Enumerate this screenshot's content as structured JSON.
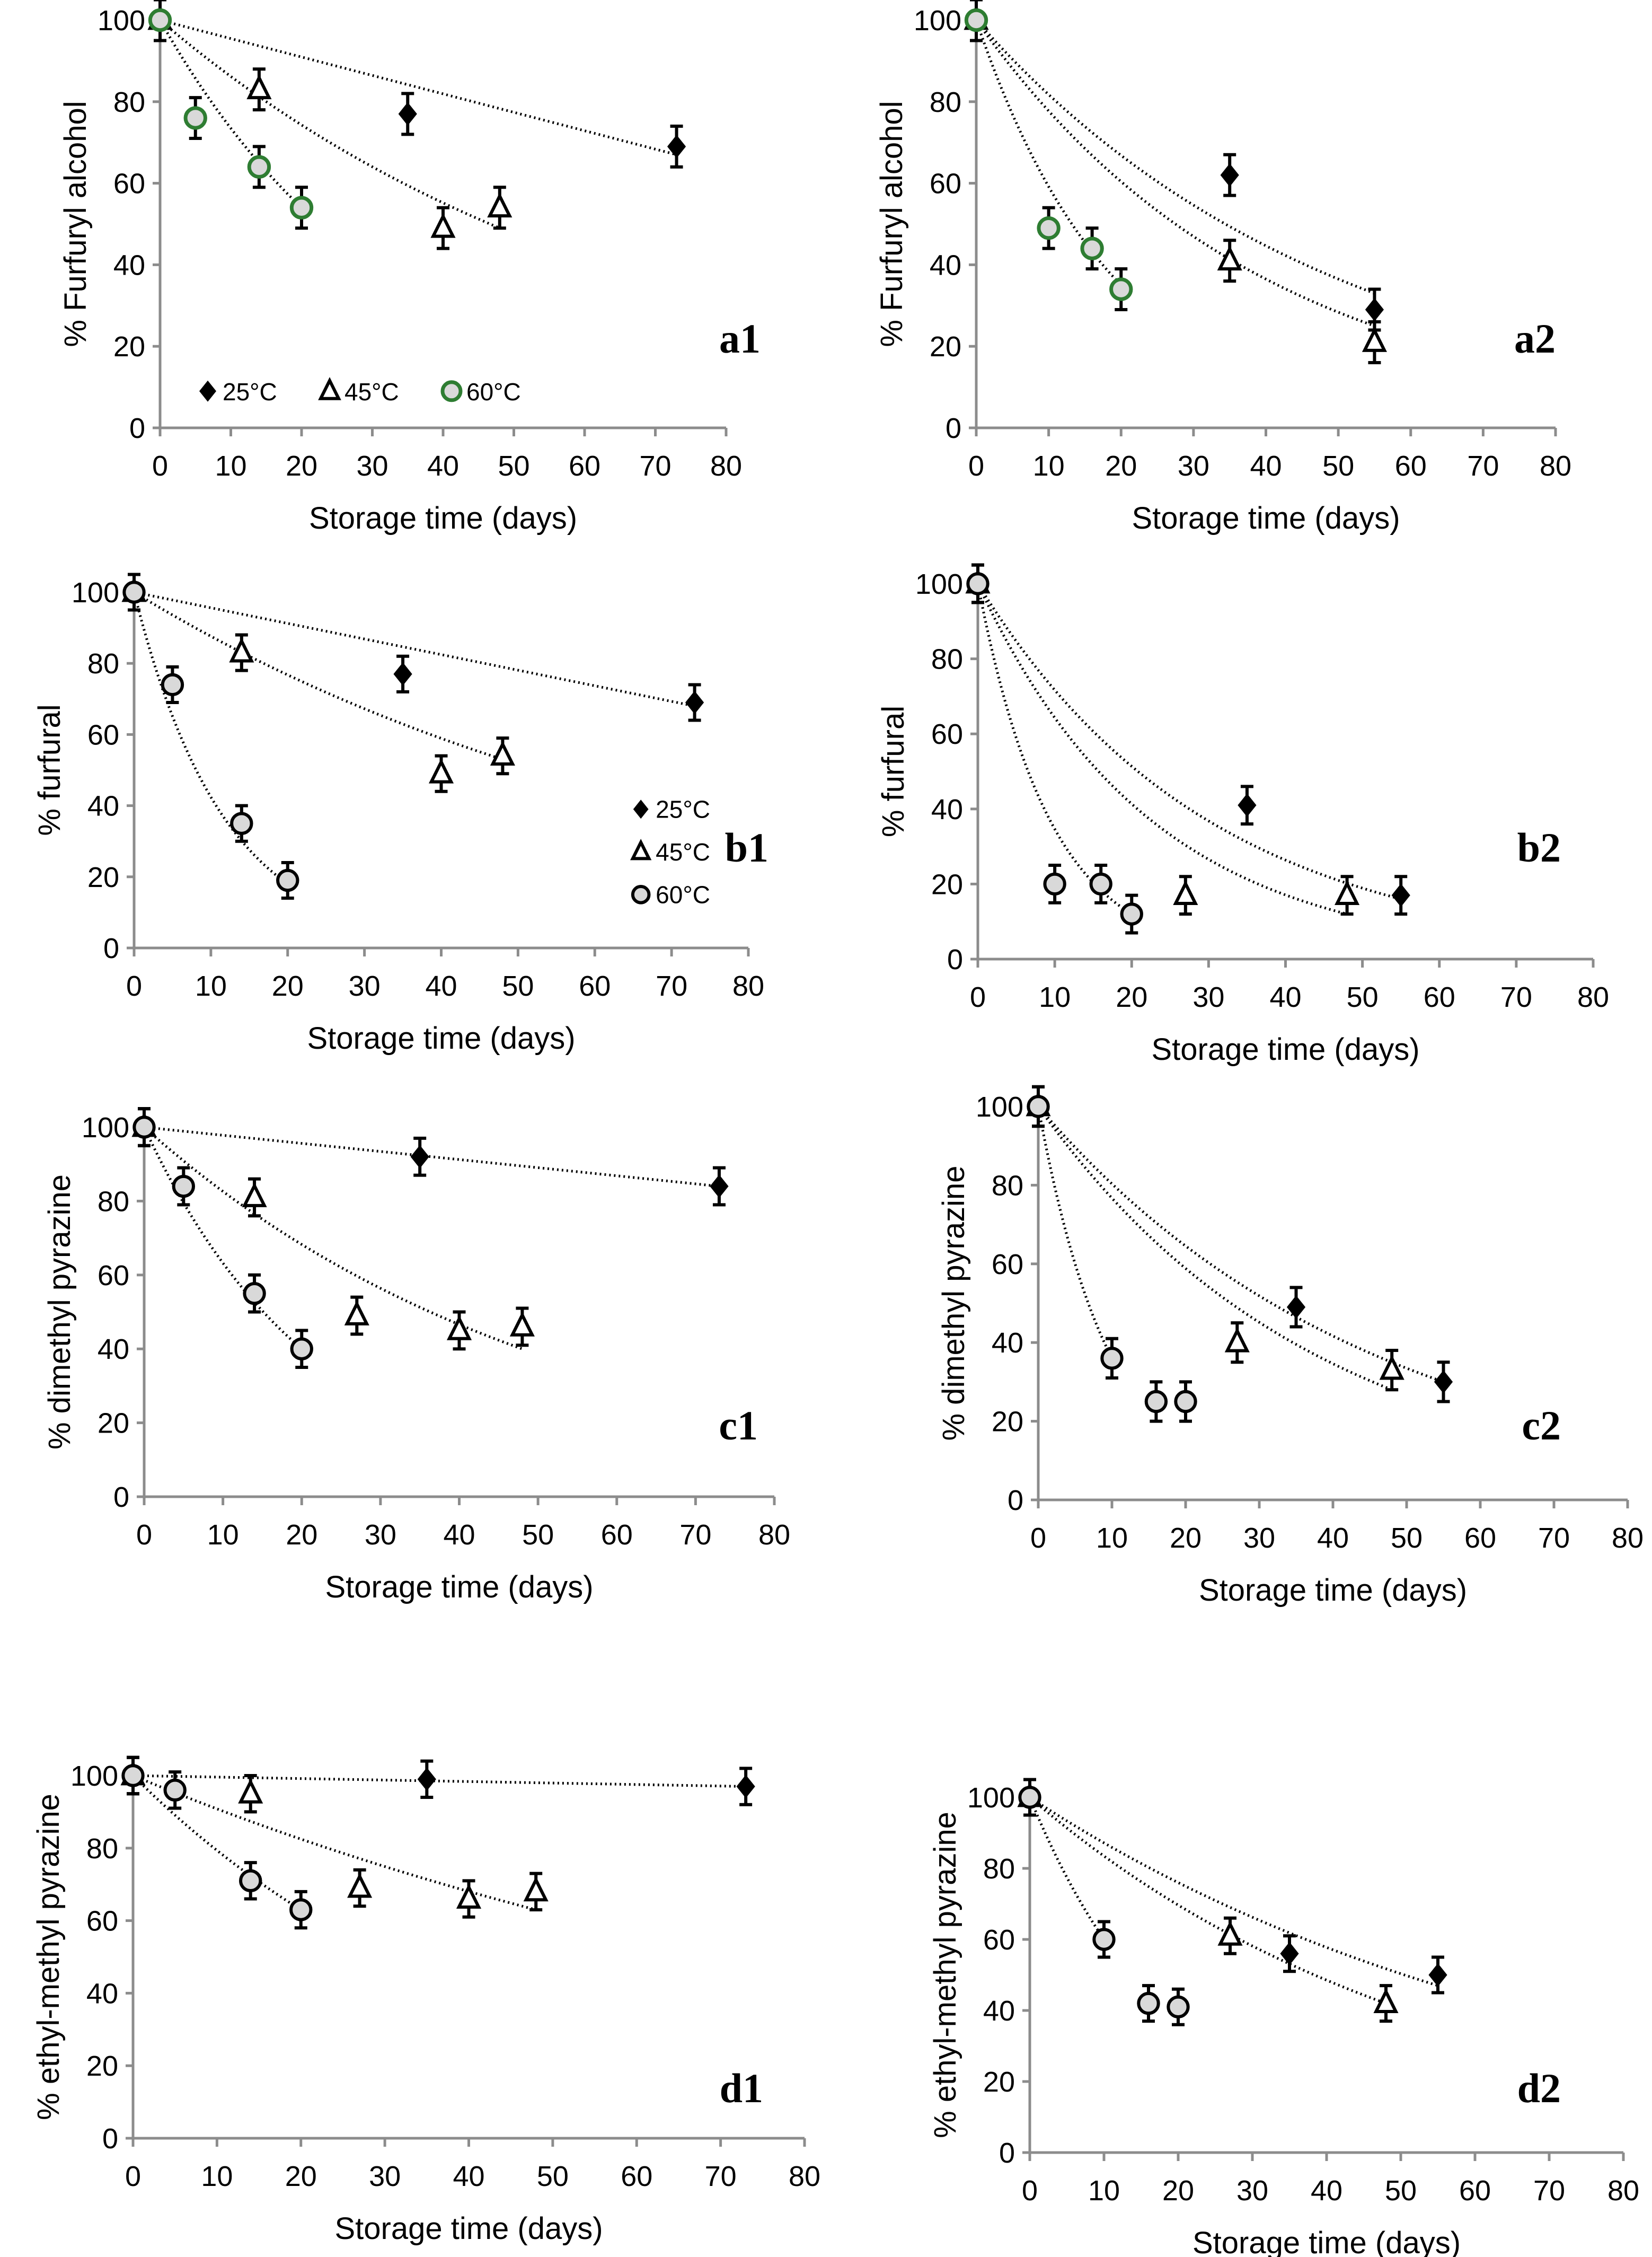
{
  "colors": {
    "axis": "#8c8c8c",
    "marker_black": "#000000",
    "marker_fill_grey": "#d9d9d9",
    "marker_edge_green": "#2e7d32",
    "fit_line": "#000000"
  },
  "chart_data": [
    {
      "id": "a1",
      "panel_label": "a1",
      "type": "scatter",
      "xlabel": "Storage time (days)",
      "ylabel": "% Furfuryl alcohol",
      "xlim": [
        0,
        80
      ],
      "ylim": [
        0,
        100
      ],
      "xticks": [
        0,
        10,
        20,
        30,
        40,
        50,
        60,
        70,
        80
      ],
      "yticks": [
        0,
        20,
        40,
        60,
        80,
        100
      ],
      "grid": false,
      "legend": "bottom-left horizontal",
      "error": 5,
      "series": [
        {
          "name": "25°C",
          "marker": "diamond",
          "x": [
            0,
            35,
            73
          ],
          "y": [
            100,
            77,
            69
          ],
          "fit": "linear",
          "fit_end": [
            73,
            67
          ]
        },
        {
          "name": "45°C",
          "marker": "triangle",
          "x": [
            0,
            14,
            40,
            48
          ],
          "y": [
            100,
            83,
            49,
            54
          ],
          "fit": "exp",
          "fit_end": [
            48,
            49
          ]
        },
        {
          "name": "60°C",
          "marker": "circle-green",
          "x": [
            0,
            5,
            14,
            20
          ],
          "y": [
            100,
            76,
            64,
            54
          ],
          "fit": "exp",
          "fit_end": [
            20,
            54
          ]
        }
      ]
    },
    {
      "id": "a2",
      "panel_label": "a2",
      "type": "scatter",
      "xlabel": "Storage time (days)",
      "ylabel": "% Furfuryl alcohol",
      "xlim": [
        0,
        80
      ],
      "ylim": [
        0,
        100
      ],
      "xticks": [
        0,
        10,
        20,
        30,
        40,
        50,
        60,
        70,
        80
      ],
      "yticks": [
        0,
        20,
        40,
        60,
        80,
        100
      ],
      "grid": false,
      "legend": "none",
      "error": 5,
      "series": [
        {
          "name": "25°C",
          "marker": "diamond",
          "x": [
            0,
            35,
            55
          ],
          "y": [
            100,
            62,
            29
          ],
          "fit": "exp",
          "fit_end": [
            55,
            33
          ]
        },
        {
          "name": "45°C",
          "marker": "triangle",
          "x": [
            0,
            35,
            55
          ],
          "y": [
            100,
            41,
            21
          ],
          "fit": "exp",
          "fit_end": [
            55,
            25
          ]
        },
        {
          "name": "60°C",
          "marker": "circle-green",
          "x": [
            0,
            10,
            16,
            20
          ],
          "y": [
            100,
            49,
            44,
            34
          ],
          "fit": "exp",
          "fit_end": [
            20,
            35
          ]
        }
      ]
    },
    {
      "id": "b1",
      "panel_label": "b1",
      "type": "scatter",
      "xlabel": "Storage time (days)",
      "ylabel": "% furfural",
      "xlim": [
        0,
        80
      ],
      "ylim": [
        0,
        100
      ],
      "xticks": [
        0,
        10,
        20,
        30,
        40,
        50,
        60,
        70,
        80
      ],
      "yticks": [
        0,
        20,
        40,
        60,
        80,
        100
      ],
      "grid": false,
      "legend": "right vertical",
      "error": 5,
      "series": [
        {
          "name": "25°C",
          "marker": "diamond",
          "x": [
            0,
            35,
            73
          ],
          "y": [
            100,
            77,
            69
          ],
          "fit": "linear",
          "fit_end": [
            73,
            68
          ]
        },
        {
          "name": "45°C",
          "marker": "triangle",
          "x": [
            0,
            14,
            40,
            48
          ],
          "y": [
            100,
            83,
            49,
            54
          ],
          "fit": "exp",
          "fit_end": [
            48,
            53
          ]
        },
        {
          "name": "60°C",
          "marker": "circle",
          "x": [
            0,
            5,
            14,
            20
          ],
          "y": [
            100,
            74,
            35,
            19
          ],
          "fit": "exp",
          "fit_end": [
            20,
            18
          ]
        }
      ]
    },
    {
      "id": "b2",
      "panel_label": "b2",
      "type": "scatter",
      "xlabel": "Storage time (days)",
      "ylabel": "% furfural",
      "xlim": [
        0,
        80
      ],
      "ylim": [
        0,
        100
      ],
      "xticks": [
        0,
        10,
        20,
        30,
        40,
        50,
        60,
        70,
        80
      ],
      "yticks": [
        0,
        20,
        40,
        60,
        80,
        100
      ],
      "grid": false,
      "legend": "none",
      "error": 5,
      "series": [
        {
          "name": "25°C",
          "marker": "diamond",
          "x": [
            0,
            35,
            55
          ],
          "y": [
            100,
            41,
            17
          ],
          "fit": "exp",
          "fit_end": [
            55,
            16
          ]
        },
        {
          "name": "45°C",
          "marker": "triangle",
          "x": [
            0,
            27,
            48
          ],
          "y": [
            100,
            17,
            17
          ],
          "fit": "exp",
          "fit_end": [
            48,
            12
          ]
        },
        {
          "name": "60°C",
          "marker": "circle",
          "x": [
            0,
            10,
            16,
            20
          ],
          "y": [
            100,
            20,
            20,
            12
          ],
          "fit": "exp",
          "fit_end": [
            20,
            12
          ]
        }
      ]
    },
    {
      "id": "c1",
      "panel_label": "c1",
      "type": "scatter",
      "xlabel": "Storage time (days)",
      "ylabel": "% dimethyl pyrazine",
      "xlim": [
        0,
        80
      ],
      "ylim": [
        0,
        100
      ],
      "xticks": [
        0,
        10,
        20,
        30,
        40,
        50,
        60,
        70,
        80
      ],
      "yticks": [
        0,
        20,
        40,
        60,
        80,
        100
      ],
      "grid": false,
      "legend": "none",
      "error": 5,
      "series": [
        {
          "name": "25°C",
          "marker": "diamond",
          "x": [
            0,
            35,
            73
          ],
          "y": [
            100,
            92,
            84
          ],
          "fit": "linear",
          "fit_end": [
            73,
            84
          ]
        },
        {
          "name": "45°C",
          "marker": "triangle",
          "x": [
            0,
            14,
            27,
            40,
            48
          ],
          "y": [
            100,
            81,
            49,
            45,
            46
          ],
          "fit": "exp",
          "fit_end": [
            48,
            40
          ]
        },
        {
          "name": "60°C",
          "marker": "circle",
          "x": [
            0,
            5,
            14,
            20
          ],
          "y": [
            100,
            84,
            55,
            40
          ],
          "fit": "exp",
          "fit_end": [
            20,
            40
          ]
        }
      ]
    },
    {
      "id": "c2",
      "panel_label": "c2",
      "type": "scatter",
      "xlabel": "Storage time (days)",
      "ylabel": "% dimethyl pyrazine",
      "xlim": [
        0,
        80
      ],
      "ylim": [
        0,
        100
      ],
      "xticks": [
        0,
        10,
        20,
        30,
        40,
        50,
        60,
        70,
        80
      ],
      "yticks": [
        0,
        20,
        40,
        60,
        80,
        100
      ],
      "grid": false,
      "legend": "none",
      "error": 5,
      "series": [
        {
          "name": "25°C",
          "marker": "diamond",
          "x": [
            0,
            35,
            55
          ],
          "y": [
            100,
            49,
            30
          ],
          "fit": "exp",
          "fit_end": [
            55,
            30
          ]
        },
        {
          "name": "45°C",
          "marker": "triangle",
          "x": [
            0,
            27,
            48
          ],
          "y": [
            100,
            40,
            33
          ],
          "fit": "exp",
          "fit_end": [
            48,
            28
          ]
        },
        {
          "name": "60°C",
          "marker": "circle",
          "x": [
            0,
            10,
            16,
            20
          ],
          "y": [
            100,
            36,
            25,
            25
          ],
          "fit": "exp",
          "fit_end": [
            10,
            36
          ]
        }
      ]
    },
    {
      "id": "d1",
      "panel_label": "d1",
      "type": "scatter",
      "xlabel": "Storage time (days)",
      "ylabel": "% ethyl-methyl pyrazine",
      "xlim": [
        0,
        80
      ],
      "ylim": [
        0,
        100
      ],
      "xticks": [
        0,
        10,
        20,
        30,
        40,
        50,
        60,
        70,
        80
      ],
      "yticks": [
        0,
        20,
        40,
        60,
        80,
        100
      ],
      "grid": false,
      "legend": "none",
      "error": 5,
      "series": [
        {
          "name": "25°C",
          "marker": "diamond",
          "x": [
            0,
            35,
            73
          ],
          "y": [
            100,
            99,
            97
          ],
          "fit": "linear",
          "fit_end": [
            73,
            97
          ]
        },
        {
          "name": "45°C",
          "marker": "triangle",
          "x": [
            0,
            14,
            27,
            40,
            48
          ],
          "y": [
            100,
            95,
            69,
            66,
            68
          ],
          "fit": "exp",
          "fit_end": [
            48,
            63
          ]
        },
        {
          "name": "60°C",
          "marker": "circle",
          "x": [
            0,
            5,
            14,
            20
          ],
          "y": [
            100,
            96,
            71,
            63
          ],
          "fit": "exp",
          "fit_end": [
            20,
            63
          ]
        }
      ]
    },
    {
      "id": "d2",
      "panel_label": "d2",
      "type": "scatter",
      "xlabel": "Storage time (days)",
      "ylabel": "% ethyl-methyl pyrazine",
      "xlim": [
        0,
        80
      ],
      "ylim": [
        0,
        100
      ],
      "xticks": [
        0,
        10,
        20,
        30,
        40,
        50,
        60,
        70,
        80
      ],
      "yticks": [
        0,
        20,
        40,
        60,
        80,
        100
      ],
      "grid": false,
      "legend": "none",
      "error": 5,
      "series": [
        {
          "name": "25°C",
          "marker": "diamond",
          "x": [
            0,
            35,
            55
          ],
          "y": [
            100,
            56,
            50
          ],
          "fit": "exp",
          "fit_end": [
            55,
            47
          ]
        },
        {
          "name": "45°C",
          "marker": "triangle",
          "x": [
            0,
            27,
            48
          ],
          "y": [
            100,
            61,
            42
          ],
          "fit": "exp",
          "fit_end": [
            48,
            42
          ]
        },
        {
          "name": "60°C",
          "marker": "circle",
          "x": [
            0,
            10,
            16,
            20
          ],
          "y": [
            100,
            60,
            42,
            41
          ],
          "fit": "exp",
          "fit_end": [
            10,
            60
          ]
        }
      ]
    }
  ]
}
